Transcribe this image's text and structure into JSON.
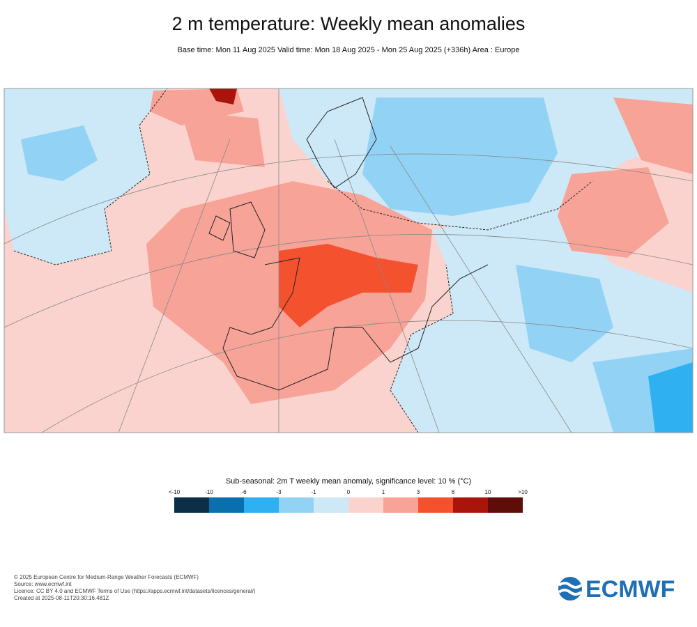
{
  "header": {
    "title": "2 m temperature: Weekly mean anomalies",
    "subtitle": "Base time: Mon 11 Aug 2025 Valid time: Mon 18 Aug 2025 - Mon 25 Aug 2025 (+336h) Area : Europe"
  },
  "legend": {
    "title": "Sub-seasonal: 2m T weekly mean anomaly, significance level: 10 % (°C)",
    "labels": [
      "<-10",
      "-10",
      "-6",
      "-3",
      "-1",
      "0",
      "1",
      "3",
      "6",
      "10",
      ">10"
    ],
    "colors": [
      "#0c2f47",
      "#0a6fad",
      "#2fb0f0",
      "#92d3f5",
      "#cde9f7",
      "#fbd3ce",
      "#f7a397",
      "#f4512f",
      "#a9150b",
      "#5e0d08"
    ]
  },
  "footer": {
    "lines": [
      "© 2025 European Centre for Medium-Range Weather Forecasts (ECMWF)",
      "Source: www.ecmwf.int",
      "Licence: CC BY 4.0 and ECMWF Terms of Use (https://apps.ecmwf.int/datasets/licences/general/)",
      "Created at 2025-08-11T20:30:16.481Z"
    ],
    "logo": "ECMWF"
  }
}
